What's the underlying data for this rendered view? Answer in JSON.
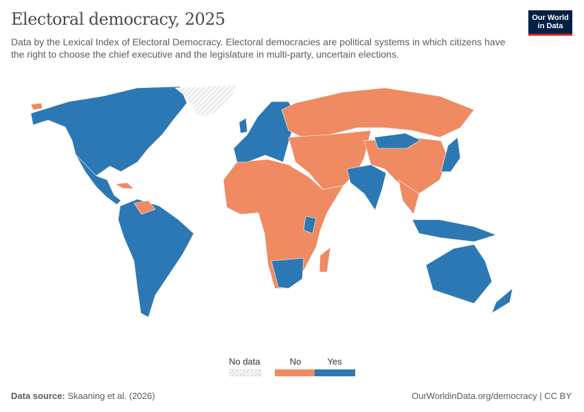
{
  "header": {
    "title": "Electoral democracy, 2025",
    "subtitle": "Data by the Lexical Index of Electoral Democracy. Electoral democracies are political systems in which citizens have the right to choose the chief executive and the legislature in multi-party, uncertain elections.",
    "logo_line1": "Our World",
    "logo_line2": "in Data"
  },
  "colors": {
    "yes": "#2c78b4",
    "no": "#ef8a62",
    "no_data": "#e8e8e8",
    "border": "#ffffff",
    "logo_bg": "#002147",
    "logo_accent": "#ce261e"
  },
  "legend": {
    "no_data": "No data",
    "no": "No",
    "yes": "Yes"
  },
  "map": {
    "projection": "world",
    "regions_yes": [
      "North America",
      "Mexico & Central America",
      "South America",
      "Europe",
      "India",
      "Mongolia",
      "Japan",
      "South Korea",
      "Indonesia",
      "Australia",
      "New Zealand",
      "South Africa",
      "Southern Africa"
    ],
    "regions_no": [
      "Russia",
      "China",
      "Middle East & Central Asia",
      "Africa",
      "Southeast Asia",
      "Venezuela",
      "Cuba",
      "Madagascar"
    ],
    "regions_no_data": [
      "Greenland"
    ]
  },
  "footer": {
    "source_label": "Data source:",
    "source_value": "Skaaning et al. (2026)",
    "url": "OurWorldinData.org/democracy | CC BY"
  }
}
